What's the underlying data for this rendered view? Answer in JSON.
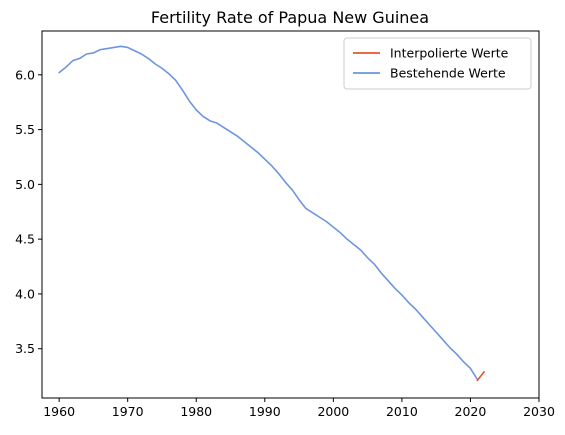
{
  "chart_data": {
    "type": "line",
    "title": "Fertility Rate of Papua New Guinea",
    "xlabel": "",
    "ylabel": "",
    "xlim": [
      1957.5,
      2030
    ],
    "ylim": [
      3.05,
      6.4
    ],
    "xticks": [
      1960,
      1970,
      1980,
      1990,
      2000,
      2010,
      2020,
      2030
    ],
    "yticks": [
      3.5,
      4.0,
      4.5,
      5.0,
      5.5,
      6.0
    ],
    "ytick_labels": [
      "3.5",
      "4.0",
      "4.5",
      "5.0",
      "5.5",
      "6.0"
    ],
    "grid": false,
    "legend_position": "top-right",
    "series": [
      {
        "name": "Interpolierte Werte",
        "color": "#e8542a",
        "x": [
          2021,
          2022
        ],
        "y": [
          3.21,
          3.29
        ]
      },
      {
        "name": "Bestehende Werte",
        "color": "#6d95e0",
        "x": [
          1960,
          1961,
          1962,
          1963,
          1964,
          1965,
          1966,
          1967,
          1968,
          1969,
          1970,
          1971,
          1972,
          1973,
          1974,
          1975,
          1976,
          1977,
          1978,
          1979,
          1980,
          1981,
          1982,
          1983,
          1984,
          1985,
          1986,
          1987,
          1988,
          1989,
          1990,
          1991,
          1992,
          1993,
          1994,
          1995,
          1996,
          1997,
          1998,
          1999,
          2000,
          2001,
          2002,
          2003,
          2004,
          2005,
          2006,
          2007,
          2008,
          2009,
          2010,
          2011,
          2012,
          2013,
          2014,
          2015,
          2016,
          2017,
          2018,
          2019,
          2020,
          2021
        ],
        "y": [
          6.02,
          6.07,
          6.13,
          6.15,
          6.19,
          6.2,
          6.23,
          6.24,
          6.25,
          6.26,
          6.25,
          6.22,
          6.19,
          6.15,
          6.1,
          6.06,
          6.01,
          5.95,
          5.86,
          5.76,
          5.68,
          5.62,
          5.58,
          5.56,
          5.52,
          5.48,
          5.44,
          5.39,
          5.34,
          5.29,
          5.23,
          5.17,
          5.1,
          5.02,
          4.95,
          4.86,
          4.78,
          4.74,
          4.7,
          4.66,
          4.61,
          4.56,
          4.5,
          4.45,
          4.4,
          4.33,
          4.27,
          4.19,
          4.12,
          4.05,
          3.99,
          3.92,
          3.86,
          3.79,
          3.72,
          3.65,
          3.58,
          3.51,
          3.45,
          3.38,
          3.32,
          3.22
        ]
      }
    ]
  }
}
